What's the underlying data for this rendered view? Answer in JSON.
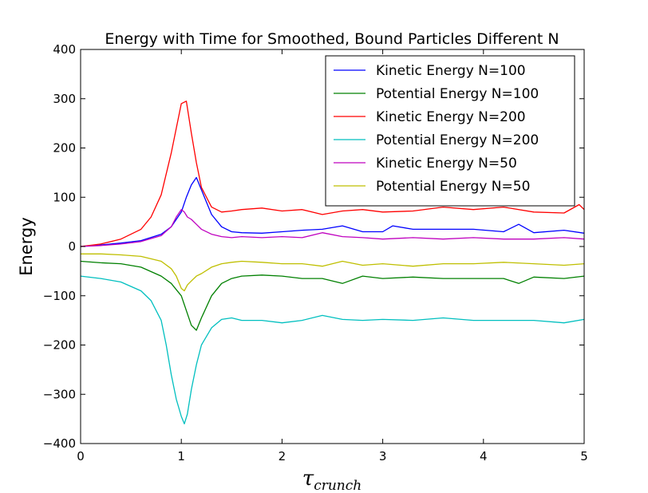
{
  "chart_data": {
    "type": "line",
    "title": "Energy with Time for Smoothed, Bound Particles Different N",
    "ylabel": "Energy",
    "xlabel_main": "τ",
    "xlabel_sub": "crunch",
    "xlim": [
      0,
      5
    ],
    "ylim": [
      -400,
      400
    ],
    "xticks": [
      0,
      1,
      2,
      3,
      4,
      5
    ],
    "yticks": [
      -400,
      -300,
      -200,
      -100,
      0,
      100,
      200,
      300,
      400
    ],
    "xtick_labels": [
      "0",
      "1",
      "2",
      "3",
      "4",
      "5"
    ],
    "ytick_labels": [
      "−400",
      "−300",
      "−200",
      "−100",
      "0",
      "100",
      "200",
      "300",
      "400"
    ],
    "grid": false,
    "legend_position": "top-right",
    "series": [
      {
        "name": "Kinetic Energy N=100",
        "color": "#0000ff",
        "x": [
          0,
          0.2,
          0.4,
          0.6,
          0.8,
          0.9,
          1.0,
          1.05,
          1.1,
          1.15,
          1.2,
          1.3,
          1.4,
          1.5,
          1.6,
          1.8,
          2.0,
          2.2,
          2.4,
          2.6,
          2.8,
          3.0,
          3.1,
          3.3,
          3.6,
          3.9,
          4.2,
          4.35,
          4.5,
          4.8,
          5.0
        ],
        "y": [
          0,
          3,
          7,
          12,
          25,
          40,
          70,
          100,
          125,
          140,
          115,
          65,
          40,
          30,
          28,
          27,
          30,
          33,
          35,
          42,
          30,
          30,
          42,
          35,
          35,
          35,
          30,
          45,
          28,
          33,
          27
        ]
      },
      {
        "name": "Potential Energy N=100",
        "color": "#008000",
        "x": [
          0,
          0.2,
          0.4,
          0.6,
          0.8,
          0.9,
          1.0,
          1.05,
          1.1,
          1.15,
          1.2,
          1.3,
          1.4,
          1.5,
          1.6,
          1.8,
          2.0,
          2.2,
          2.4,
          2.6,
          2.8,
          3.0,
          3.3,
          3.6,
          3.9,
          4.2,
          4.35,
          4.5,
          4.8,
          5.0
        ],
        "y": [
          -30,
          -33,
          -35,
          -42,
          -60,
          -75,
          -100,
          -130,
          -160,
          -170,
          -145,
          -100,
          -75,
          -65,
          -60,
          -58,
          -60,
          -65,
          -65,
          -75,
          -60,
          -65,
          -62,
          -65,
          -65,
          -65,
          -75,
          -62,
          -65,
          -60
        ]
      },
      {
        "name": "Kinetic Energy N=200",
        "color": "#ff0000",
        "x": [
          0,
          0.2,
          0.4,
          0.6,
          0.7,
          0.8,
          0.9,
          0.95,
          1.0,
          1.05,
          1.1,
          1.15,
          1.2,
          1.3,
          1.4,
          1.5,
          1.6,
          1.8,
          2.0,
          2.2,
          2.4,
          2.6,
          2.8,
          3.0,
          3.3,
          3.6,
          3.9,
          4.2,
          4.5,
          4.8,
          4.95,
          5.0
        ],
        "y": [
          0,
          5,
          15,
          35,
          60,
          105,
          190,
          240,
          290,
          295,
          230,
          170,
          120,
          80,
          70,
          72,
          75,
          78,
          72,
          75,
          65,
          72,
          75,
          70,
          72,
          80,
          75,
          80,
          70,
          68,
          85,
          75
        ]
      },
      {
        "name": "Potential Energy N=200",
        "color": "#00bfbf",
        "x": [
          0,
          0.2,
          0.4,
          0.6,
          0.7,
          0.8,
          0.85,
          0.9,
          0.95,
          1.0,
          1.03,
          1.06,
          1.1,
          1.15,
          1.2,
          1.3,
          1.4,
          1.5,
          1.6,
          1.8,
          2.0,
          2.2,
          2.4,
          2.6,
          2.8,
          3.0,
          3.3,
          3.6,
          3.9,
          4.2,
          4.5,
          4.8,
          5.0
        ],
        "y": [
          -60,
          -65,
          -72,
          -90,
          -110,
          -150,
          -200,
          -260,
          -310,
          -345,
          -360,
          -340,
          -290,
          -240,
          -200,
          -165,
          -148,
          -145,
          -150,
          -150,
          -155,
          -150,
          -140,
          -148,
          -150,
          -148,
          -150,
          -145,
          -150,
          -150,
          -150,
          -155,
          -148
        ]
      },
      {
        "name": "Kinetic Energy N=50",
        "color": "#bf00bf",
        "x": [
          0,
          0.2,
          0.4,
          0.6,
          0.8,
          0.9,
          0.95,
          1.0,
          1.03,
          1.06,
          1.1,
          1.15,
          1.2,
          1.3,
          1.4,
          1.5,
          1.6,
          1.8,
          2.0,
          2.2,
          2.4,
          2.6,
          2.8,
          3.0,
          3.3,
          3.6,
          3.9,
          4.2,
          4.5,
          4.8,
          5.0
        ],
        "y": [
          0,
          2,
          5,
          10,
          22,
          40,
          60,
          75,
          70,
          60,
          55,
          45,
          35,
          25,
          20,
          18,
          20,
          18,
          20,
          18,
          28,
          20,
          18,
          15,
          18,
          15,
          18,
          15,
          15,
          18,
          15
        ]
      },
      {
        "name": "Potential Energy N=50",
        "color": "#bfbf00",
        "x": [
          0,
          0.2,
          0.4,
          0.6,
          0.8,
          0.9,
          0.95,
          1.0,
          1.03,
          1.06,
          1.1,
          1.15,
          1.2,
          1.3,
          1.4,
          1.5,
          1.6,
          1.8,
          2.0,
          2.2,
          2.4,
          2.6,
          2.8,
          3.0,
          3.3,
          3.6,
          3.9,
          4.2,
          4.5,
          4.8,
          5.0
        ],
        "y": [
          -15,
          -15,
          -17,
          -20,
          -30,
          -45,
          -60,
          -85,
          -90,
          -78,
          -70,
          -60,
          -55,
          -42,
          -35,
          -32,
          -30,
          -32,
          -35,
          -35,
          -40,
          -30,
          -38,
          -35,
          -40,
          -35,
          -35,
          -32,
          -35,
          -38,
          -35
        ]
      }
    ]
  }
}
